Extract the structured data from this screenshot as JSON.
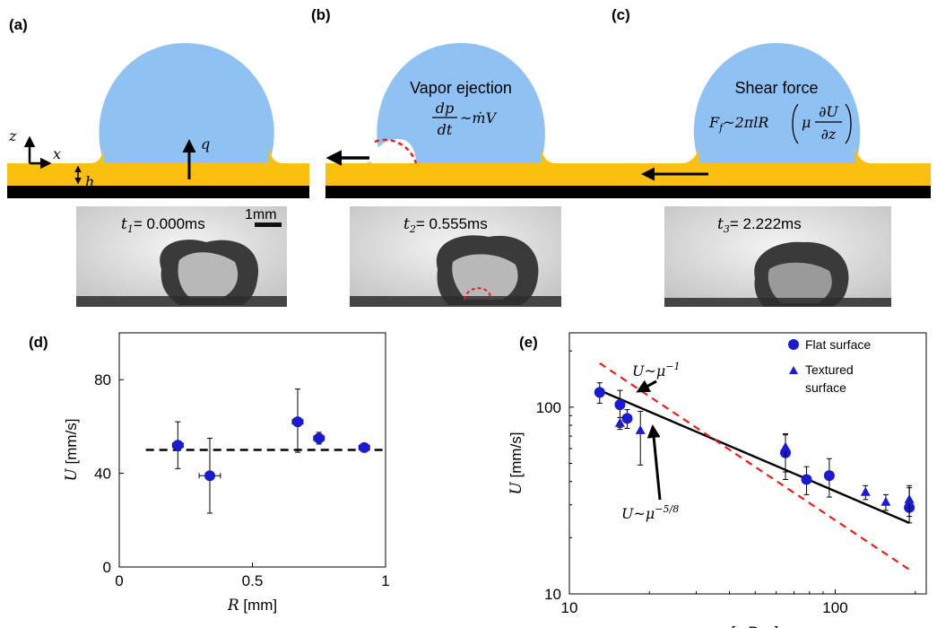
{
  "panels": {
    "a": {
      "label": "(a)",
      "axis_z": "z",
      "axis_x": "x",
      "heat_flux": "q",
      "film_thickness": "h",
      "time_label": "t",
      "time_sub": "1",
      "time_value": "= 0.000ms",
      "scale_bar": "1mm"
    },
    "b": {
      "label": "(b)",
      "title": "Vapor ejection",
      "eq_num": "dp",
      "eq_den": "dt",
      "eq_rhs": "~ṁV",
      "time_label": "t",
      "time_sub": "2",
      "time_value": "= 0.555ms"
    },
    "c": {
      "label": "(c)",
      "title": "Shear force",
      "eq_lhs": "F",
      "eq_lhs_sub": "f",
      "eq_mid": "~2πlR",
      "eq_mu": "μ",
      "eq_num": "∂U",
      "eq_den": "∂z",
      "time_label": "t",
      "time_sub": "3",
      "time_value": "= 2.222ms"
    },
    "d": {
      "label": "(d)"
    },
    "e": {
      "label": "(e)",
      "ann1_base": "U~μ",
      "ann1_exp": "−1",
      "ann2_base": "U~μ",
      "ann2_exp": "−5/8"
    }
  },
  "colors": {
    "droplet": "#8fc2f2",
    "substrate": "#fbbf0d",
    "base": "#000000",
    "marker": "#1a1ad2",
    "fit": "#000000",
    "reference": "#ee1c1c"
  },
  "chart_data": [
    {
      "type": "scatter",
      "panel": "d",
      "xlabel": "R [mm]",
      "ylabel": "U [mm/s]",
      "xlim": [
        0,
        1
      ],
      "ylim": [
        0,
        100
      ],
      "xticks": [
        0,
        0.5,
        1
      ],
      "xtick_labels": [
        "0",
        "0.5",
        "1"
      ],
      "yticks": [
        0,
        40,
        80
      ],
      "ytick_labels": [
        "0",
        "40",
        "80"
      ],
      "series": [
        {
          "points": [
            {
              "x": 0.22,
              "y": 52,
              "xerr": 0.02,
              "yerr_low": 10,
              "yerr_high": 10
            },
            {
              "x": 0.34,
              "y": 39,
              "xerr": 0.04,
              "yerr_low": 16,
              "yerr_high": 16
            },
            {
              "x": 0.67,
              "y": 62,
              "xerr": 0.02,
              "yerr_low": 13,
              "yerr_high": 14
            },
            {
              "x": 0.75,
              "y": 55,
              "xerr": 0.02,
              "yerr_low": 2.5,
              "yerr_high": 2.5
            },
            {
              "x": 0.92,
              "y": 51,
              "xerr": 0.02,
              "yerr_low": 1,
              "yerr_high": 1
            }
          ]
        }
      ],
      "reference_line": {
        "y": 50,
        "x_range": [
          0.1,
          1.0
        ],
        "style": "dashed"
      }
    },
    {
      "type": "scatter",
      "panel": "e",
      "xlabel": "μ [mPas]",
      "ylabel": "U [mm/s]",
      "xscale": "log",
      "yscale": "log",
      "xlim": [
        10,
        220
      ],
      "ylim": [
        10,
        250
      ],
      "xticks": [
        10,
        100
      ],
      "xtick_labels": [
        "10",
        "100"
      ],
      "yticks": [
        10,
        100
      ],
      "ytick_labels": [
        "10",
        "100"
      ],
      "legend_position": "top-right",
      "series": [
        {
          "name": "Flat surface",
          "marker": "circle",
          "points": [
            {
              "x": 13,
              "y": 120,
              "yerr_low": 15,
              "yerr_high": 15
            },
            {
              "x": 15.5,
              "y": 103,
              "yerr_low": 25,
              "yerr_high": 20
            },
            {
              "x": 16.5,
              "y": 87,
              "yerr_low": 10,
              "yerr_high": 10
            },
            {
              "x": 65,
              "y": 57,
              "yerr_low": 12,
              "yerr_high": 15
            },
            {
              "x": 78,
              "y": 41,
              "yerr_low": 7,
              "yerr_high": 7
            },
            {
              "x": 95,
              "y": 43,
              "yerr_low": 10,
              "yerr_high": 10
            },
            {
              "x": 190,
              "y": 29,
              "yerr_low": 5,
              "yerr_high": 8
            }
          ]
        },
        {
          "name": "Textured\nsurface",
          "marker": "triangle",
          "points": [
            {
              "x": 15.5,
              "y": 82,
              "yerr_low": 6,
              "yerr_high": 6
            },
            {
              "x": 18.5,
              "y": 75,
              "yerr_low": 26,
              "yerr_high": 20
            },
            {
              "x": 65,
              "y": 61,
              "yerr_low": 20,
              "yerr_high": 10
            },
            {
              "x": 130,
              "y": 35,
              "yerr_low": 3,
              "yerr_high": 3
            },
            {
              "x": 155,
              "y": 31,
              "yerr_low": 3,
              "yerr_high": 3
            },
            {
              "x": 190,
              "y": 32,
              "yerr_low": 6,
              "yerr_high": 6
            }
          ]
        }
      ],
      "fit_lines": [
        {
          "style": "solid",
          "points": [
            [
              13,
              123
            ],
            [
              190,
              24
            ]
          ]
        },
        {
          "style": "dashed",
          "points": [
            [
              13,
              172
            ],
            [
              190,
              13.5
            ]
          ]
        }
      ]
    }
  ]
}
